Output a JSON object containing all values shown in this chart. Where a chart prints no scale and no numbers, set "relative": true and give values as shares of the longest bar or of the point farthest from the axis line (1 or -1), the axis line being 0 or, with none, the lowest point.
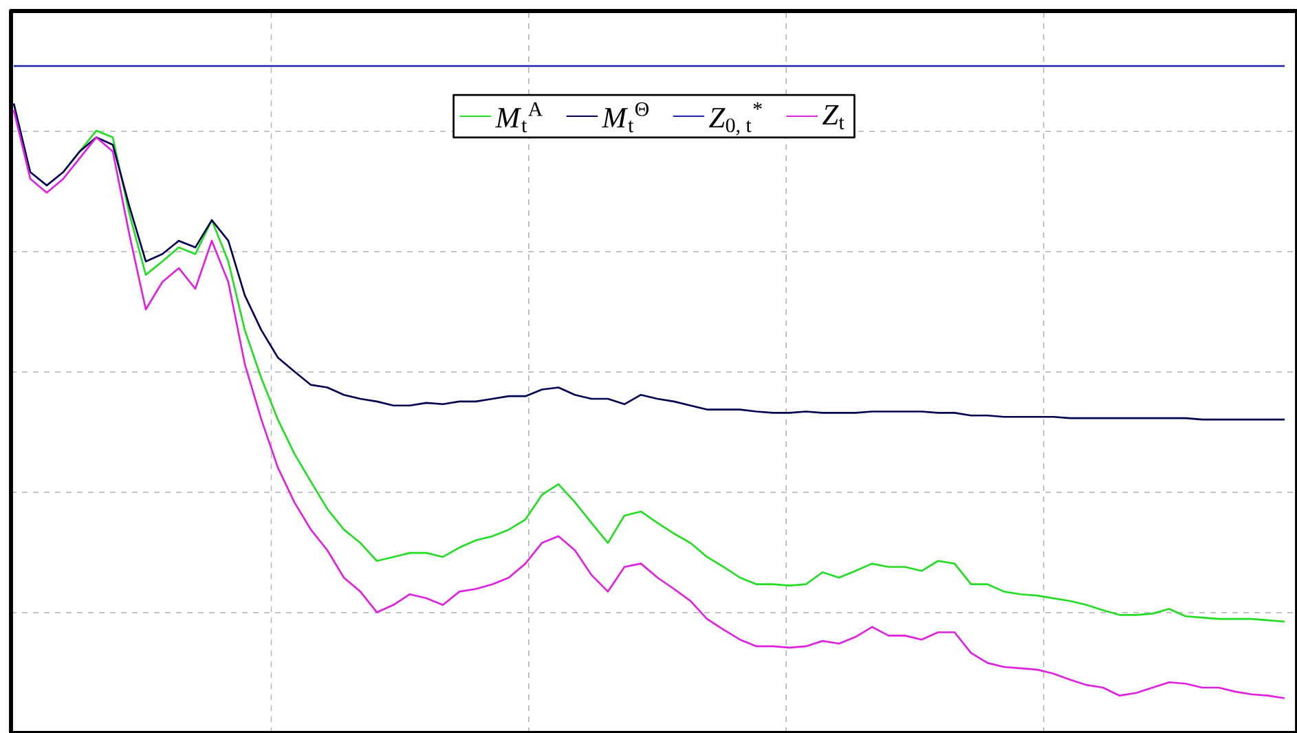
{
  "chart_data": {
    "type": "line",
    "relative": true,
    "grid": true,
    "legend": "top",
    "tick_labels": false,
    "marker": "none",
    "line_style": "solid",
    "categories": [
      null,
      null,
      null,
      null,
      null,
      null,
      null,
      null,
      null,
      null,
      null,
      null,
      null,
      null,
      null,
      null,
      null,
      null,
      null,
      null,
      null,
      null,
      null,
      null,
      null,
      null,
      null,
      null,
      null,
      null,
      null,
      null,
      null,
      null,
      null,
      null,
      null,
      null,
      null,
      null,
      null,
      null,
      null,
      null,
      null,
      null,
      null,
      null,
      null,
      null,
      null,
      null,
      null,
      null,
      null,
      null,
      null,
      null,
      null,
      null,
      null,
      null,
      null,
      null,
      null,
      null,
      null,
      null,
      null,
      null,
      null,
      null,
      null,
      null,
      null,
      null,
      null,
      null
    ],
    "series": [
      {
        "name": "*M*$_{t}$$^{A}$",
        "color": "#22dd22",
        "values": [
          null,
          null,
          null,
          0.841,
          0.872,
          0.903,
          0.893,
          0.779,
          0.687,
          0.707,
          0.728,
          0.718,
          0.769,
          0.707,
          0.604,
          0.532,
          0.47,
          0.419,
          0.377,
          0.336,
          0.305,
          0.285,
          0.258,
          0.264,
          0.27,
          0.27,
          0.264,
          0.278,
          0.289,
          0.295,
          0.305,
          0.32,
          0.357,
          0.373,
          0.346,
          0.315,
          0.285,
          0.326,
          0.332,
          0.315,
          0.299,
          0.285,
          0.264,
          0.249,
          0.233,
          0.223,
          0.223,
          0.221,
          0.223,
          0.241,
          0.233,
          0.243,
          0.254,
          0.249,
          0.249,
          0.243,
          0.258,
          0.254,
          0.223,
          0.223,
          0.212,
          0.208,
          0.206,
          0.202,
          0.198,
          0.192,
          0.184,
          0.177,
          0.177,
          0.179,
          0.186,
          0.175,
          0.173,
          0.171,
          0.171,
          0.171,
          0.169,
          0.167
        ]
      },
      {
        "name": "*M*$_{t}$$^{Θ}$",
        "color": "#000050",
        "values": [
          0.944,
          0.841,
          0.821,
          0.841,
          0.872,
          0.893,
          0.882,
          0.79,
          0.707,
          0.718,
          0.738,
          0.728,
          0.769,
          0.738,
          0.656,
          0.604,
          0.563,
          0.542,
          0.522,
          0.518,
          0.507,
          0.501,
          0.497,
          0.491,
          0.491,
          0.495,
          0.493,
          0.497,
          0.497,
          0.501,
          0.505,
          0.505,
          0.515,
          0.518,
          0.507,
          0.501,
          0.501,
          0.493,
          0.507,
          0.501,
          0.497,
          0.491,
          0.485,
          0.485,
          0.485,
          0.482,
          0.48,
          0.48,
          0.482,
          0.48,
          0.48,
          0.48,
          0.482,
          0.482,
          0.482,
          0.482,
          0.48,
          0.48,
          0.476,
          0.476,
          0.474,
          0.474,
          0.474,
          0.474,
          0.472,
          0.472,
          0.472,
          0.472,
          0.472,
          0.472,
          0.472,
          0.472,
          0.47,
          0.47,
          0.47,
          0.47,
          0.47,
          0.47
        ]
      },
      {
        "name": "*Z*$_{0, t}$$^{*}$",
        "color": "#2020b0",
        "values": [
          1,
          1,
          1,
          1,
          1,
          1,
          1,
          1,
          1,
          1,
          1,
          1,
          1,
          1,
          1,
          1,
          1,
          1,
          1,
          1,
          1,
          1,
          1,
          1,
          1,
          1,
          1,
          1,
          1,
          1,
          1,
          1,
          1,
          1,
          1,
          1,
          1,
          1,
          1,
          1,
          1,
          1,
          1,
          1,
          1,
          1,
          1,
          1,
          1,
          1,
          1,
          1,
          1,
          1,
          1,
          1,
          1,
          1,
          1,
          1,
          1,
          1,
          1,
          1,
          1,
          1,
          1,
          1,
          1,
          1,
          1,
          1,
          1,
          1,
          1,
          1,
          1,
          1
        ]
      },
      {
        "name": "*Z*$_{t}$",
        "color": "#e020e0",
        "values": [
          0.934,
          0.831,
          0.81,
          0.831,
          0.862,
          0.893,
          0.872,
          0.748,
          0.635,
          0.676,
          0.697,
          0.666,
          0.738,
          0.676,
          0.553,
          0.47,
          0.398,
          0.346,
          0.305,
          0.274,
          0.233,
          0.212,
          0.181,
          0.192,
          0.208,
          0.202,
          0.192,
          0.212,
          0.216,
          0.223,
          0.233,
          0.254,
          0.285,
          0.295,
          0.274,
          0.237,
          0.212,
          0.249,
          0.254,
          0.233,
          0.216,
          0.198,
          0.171,
          0.155,
          0.14,
          0.13,
          0.13,
          0.128,
          0.13,
          0.138,
          0.134,
          0.144,
          0.159,
          0.146,
          0.146,
          0.14,
          0.151,
          0.151,
          0.12,
          0.105,
          0.099,
          0.097,
          0.095,
          0.089,
          0.08,
          0.072,
          0.068,
          0.056,
          0.06,
          0.068,
          0.076,
          0.074,
          0.068,
          0.068,
          0.062,
          0.058,
          0.056,
          0.052
        ]
      }
    ]
  }
}
